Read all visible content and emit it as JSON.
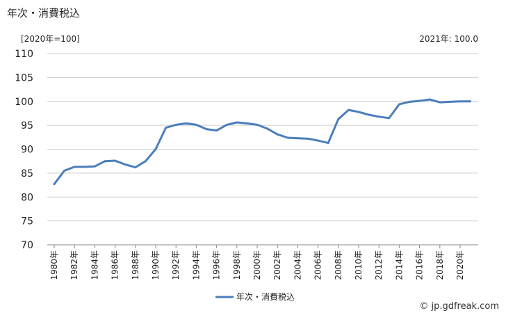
{
  "chart_data": {
    "type": "line",
    "title": "年次・消費税込",
    "unit_label": "[2020年=100]",
    "note": "2021年: 100.0",
    "x": [
      1980,
      1981,
      1982,
      1983,
      1984,
      1985,
      1986,
      1987,
      1988,
      1989,
      1990,
      1991,
      1992,
      1993,
      1994,
      1995,
      1996,
      1997,
      1998,
      1999,
      2000,
      2001,
      2002,
      2003,
      2004,
      2005,
      2006,
      2007,
      2008,
      2009,
      2010,
      2011,
      2012,
      2013,
      2014,
      2015,
      2016,
      2017,
      2018,
      2019,
      2020,
      2021
    ],
    "x_tick_labels": [
      "1980年",
      "1982年",
      "1984年",
      "1986年",
      "1988年",
      "1990年",
      "1992年",
      "1994年",
      "1996年",
      "1998年",
      "2000年",
      "2002年",
      "2004年",
      "2006年",
      "2008年",
      "2010年",
      "2012年",
      "2014年",
      "2016年",
      "2018年",
      "2020年"
    ],
    "series": [
      {
        "name": "年次・消費税込",
        "color": "#4a7ebb",
        "values": [
          82.7,
          85.5,
          86.3,
          86.3,
          86.4,
          87.5,
          87.6,
          86.8,
          86.2,
          87.5,
          90.0,
          94.5,
          95.1,
          95.4,
          95.1,
          94.2,
          93.9,
          95.1,
          95.6,
          95.4,
          95.1,
          94.3,
          93.1,
          92.4,
          92.3,
          92.2,
          91.8,
          91.3,
          96.3,
          98.2,
          97.8,
          97.2,
          96.8,
          96.5,
          99.4,
          99.9,
          100.1,
          100.4,
          99.8,
          99.9,
          100.0,
          100.0
        ]
      }
    ],
    "y_ticks": [
      "110",
      "105",
      "100",
      "95",
      "90",
      "85",
      "80",
      "75",
      "70"
    ],
    "ylim": [
      70,
      110
    ],
    "grid": true,
    "legend_position": "bottom-center",
    "credit": "© jp.gdfreak.com"
  }
}
